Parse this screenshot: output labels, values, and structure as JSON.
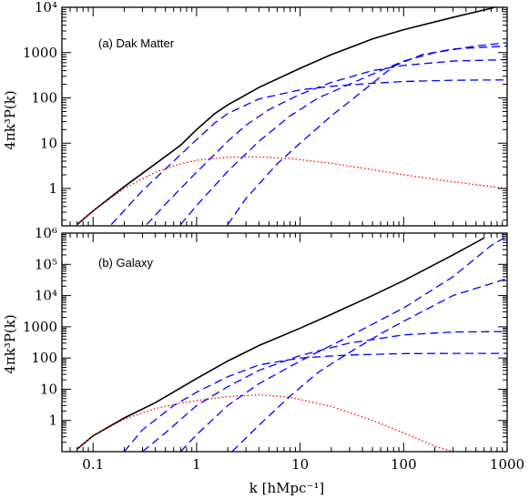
{
  "chart_data": [
    {
      "type": "line",
      "annotation": "(a) Dak Matter",
      "xlabel": "",
      "ylabel": "4πk³P(k)",
      "xscale": "log",
      "yscale": "log",
      "xlim": [
        0.05,
        1000
      ],
      "ylim": [
        0.15,
        10000
      ],
      "yticks": [
        "1",
        "10",
        "100",
        "1000",
        "10⁴"
      ],
      "xticks": [],
      "series": [
        {
          "style": "solid",
          "color": "#000000",
          "points": [
            [
              0.07,
              0.16
            ],
            [
              0.1,
              0.32
            ],
            [
              0.2,
              1.1
            ],
            [
              0.4,
              3.5
            ],
            [
              0.7,
              9
            ],
            [
              1,
              20
            ],
            [
              1.5,
              45
            ],
            [
              2,
              70
            ],
            [
              4,
              170
            ],
            [
              10,
              450
            ],
            [
              20,
              900
            ],
            [
              50,
              2000
            ],
            [
              100,
              3200
            ],
            [
              300,
              6000
            ],
            [
              700,
              9500
            ],
            [
              1000,
              12000
            ]
          ]
        },
        {
          "style": "dotted",
          "color": "#ff0000",
          "points": [
            [
              0.07,
              0.16
            ],
            [
              0.1,
              0.32
            ],
            [
              0.2,
              1.0
            ],
            [
              0.4,
              2.3
            ],
            [
              0.7,
              3.5
            ],
            [
              1,
              4.2
            ],
            [
              2,
              4.9
            ],
            [
              4,
              5.0
            ],
            [
              8,
              4.6
            ],
            [
              20,
              3.6
            ],
            [
              50,
              2.6
            ],
            [
              100,
              2.0
            ],
            [
              300,
              1.4
            ],
            [
              1000,
              1.0
            ]
          ]
        },
        {
          "style": "dashed",
          "color": "#0000ff",
          "points": [
            [
              0.15,
              0.16
            ],
            [
              0.3,
              0.9
            ],
            [
              0.6,
              4
            ],
            [
              1,
              12
            ],
            [
              1.5,
              28
            ],
            [
              2,
              45
            ],
            [
              4,
              95
            ],
            [
              10,
              150
            ],
            [
              20,
              180
            ],
            [
              50,
              210
            ],
            [
              100,
              230
            ],
            [
              300,
              245
            ],
            [
              1000,
              250
            ]
          ]
        },
        {
          "style": "dashed",
          "color": "#0000ff",
          "points": [
            [
              0.33,
              0.16
            ],
            [
              0.5,
              0.45
            ],
            [
              1,
              2.3
            ],
            [
              2,
              11
            ],
            [
              3,
              25
            ],
            [
              5,
              55
            ],
            [
              10,
              120
            ],
            [
              20,
              220
            ],
            [
              50,
              400
            ],
            [
              100,
              520
            ],
            [
              300,
              650
            ],
            [
              1000,
              700
            ]
          ]
        },
        {
          "style": "dashed",
          "color": "#0000ff",
          "points": [
            [
              0.7,
              0.16
            ],
            [
              1,
              0.42
            ],
            [
              2,
              2.4
            ],
            [
              4,
              11
            ],
            [
              8,
              40
            ],
            [
              15,
              100
            ],
            [
              30,
              200
            ],
            [
              60,
              400
            ],
            [
              100,
              650
            ],
            [
              200,
              1000
            ],
            [
              500,
              1400
            ],
            [
              1000,
              1650
            ]
          ]
        },
        {
          "style": "dashed",
          "color": "#0000ff",
          "points": [
            [
              2,
              0.16
            ],
            [
              3,
              0.6
            ],
            [
              6,
              3.5
            ],
            [
              10,
              10
            ],
            [
              20,
              40
            ],
            [
              40,
              140
            ],
            [
              80,
              500
            ],
            [
              150,
              900
            ],
            [
              300,
              1200
            ],
            [
              1000,
              1400
            ]
          ]
        }
      ]
    },
    {
      "type": "line",
      "annotation": "(b) Galaxy",
      "xlabel": "k  [hMpc⁻¹]",
      "ylabel": "4πk³P(k)",
      "xscale": "log",
      "yscale": "log",
      "xlim": [
        0.05,
        1000
      ],
      "ylim": [
        0.1,
        1000000
      ],
      "yticks": [
        "1",
        "10",
        "100",
        "1000",
        "10⁴",
        "10⁵",
        "10⁶"
      ],
      "xticks": [
        "0.1",
        "1",
        "10",
        "100",
        "1000"
      ],
      "series": [
        {
          "style": "solid",
          "color": "#000000",
          "points": [
            [
              0.07,
              0.12
            ],
            [
              0.1,
              0.32
            ],
            [
              0.2,
              1.2
            ],
            [
              0.4,
              3.7
            ],
            [
              0.7,
              11
            ],
            [
              1,
              22
            ],
            [
              2,
              80
            ],
            [
              4,
              250
            ],
            [
              10,
              900
            ],
            [
              20,
              2500
            ],
            [
              50,
              10000
            ],
            [
              100,
              30000
            ],
            [
              300,
              200000
            ],
            [
              600,
              700000
            ]
          ]
        },
        {
          "style": "dotted",
          "color": "#ff0000",
          "points": [
            [
              0.07,
              0.12
            ],
            [
              0.1,
              0.32
            ],
            [
              0.2,
              1.1
            ],
            [
              0.4,
              2.4
            ],
            [
              0.7,
              3.6
            ],
            [
              1,
              4.3
            ],
            [
              2,
              5.8
            ],
            [
              4,
              6.6
            ],
            [
              8,
              5.5
            ],
            [
              20,
              2.8
            ],
            [
              50,
              1.0
            ],
            [
              100,
              0.4
            ],
            [
              200,
              0.15
            ],
            [
              300,
              0.1
            ]
          ]
        },
        {
          "style": "dashed",
          "color": "#0000ff",
          "points": [
            [
              0.2,
              0.1
            ],
            [
              0.3,
              0.5
            ],
            [
              0.6,
              3
            ],
            [
              1,
              8
            ],
            [
              2,
              25
            ],
            [
              4,
              60
            ],
            [
              10,
              100
            ],
            [
              30,
              125
            ],
            [
              100,
              138
            ],
            [
              300,
              140
            ],
            [
              1000,
              140
            ]
          ]
        },
        {
          "style": "dashed",
          "color": "#0000ff",
          "points": [
            [
              0.3,
              0.1
            ],
            [
              0.5,
              0.4
            ],
            [
              1,
              3
            ],
            [
              2,
              12
            ],
            [
              4,
              40
            ],
            [
              10,
              120
            ],
            [
              30,
              300
            ],
            [
              100,
              550
            ],
            [
              300,
              680
            ],
            [
              1000,
              700
            ]
          ]
        },
        {
          "style": "dashed",
          "color": "#0000ff",
          "points": [
            [
              0.7,
              0.1
            ],
            [
              1,
              0.35
            ],
            [
              2,
              3
            ],
            [
              4,
              15
            ],
            [
              10,
              80
            ],
            [
              30,
              500
            ],
            [
              100,
              4000
            ],
            [
              300,
              40000
            ],
            [
              700,
              400000
            ],
            [
              1000,
              800000
            ]
          ]
        },
        {
          "style": "dashed",
          "color": "#0000ff",
          "points": [
            [
              2.2,
              0.1
            ],
            [
              4,
              0.7
            ],
            [
              8,
              6
            ],
            [
              15,
              35
            ],
            [
              30,
              150
            ],
            [
              60,
              600
            ],
            [
              100,
              1500
            ],
            [
              300,
              10000
            ],
            [
              1000,
              35000
            ]
          ]
        }
      ]
    }
  ]
}
